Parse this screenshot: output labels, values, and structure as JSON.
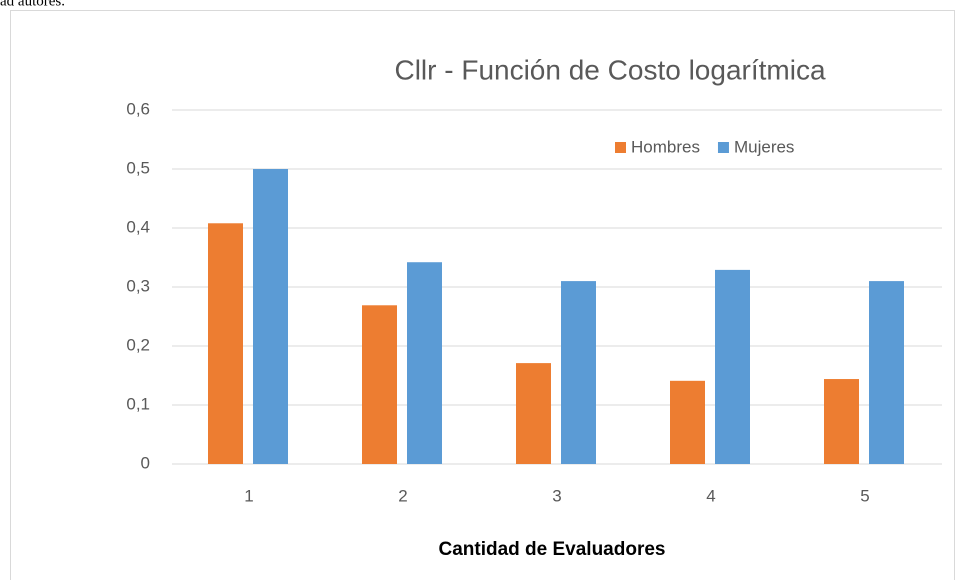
{
  "caption_fragment": "ad autores.",
  "chart_data": {
    "type": "bar",
    "title": "Cllr - Función de Costo logarítmica",
    "x_label": "Cantidad de Evaluadores",
    "categories": [
      "1",
      "2",
      "3",
      "4",
      "5"
    ],
    "series": [
      {
        "name": "Hombres",
        "color": "#ed7d31",
        "values": [
          0.408,
          0.269,
          0.171,
          0.141,
          0.144
        ]
      },
      {
        "name": "Mujeres",
        "color": "#5b9bd5",
        "values": [
          0.5,
          0.342,
          0.31,
          0.329,
          0.31
        ]
      }
    ],
    "ylim": [
      0,
      0.6
    ],
    "yticks": [
      0,
      {
        "value": 0.1,
        "label": "0,1"
      },
      {
        "value": 0.2,
        "label": "0,2"
      },
      {
        "value": 0.3,
        "label": "0,3"
      },
      {
        "value": 0.4,
        "label": "0,4"
      },
      {
        "value": 0.5,
        "label": "0,5"
      },
      {
        "value": 0.6,
        "label": "0,6"
      }
    ],
    "grid": true,
    "legend": "top-right"
  }
}
